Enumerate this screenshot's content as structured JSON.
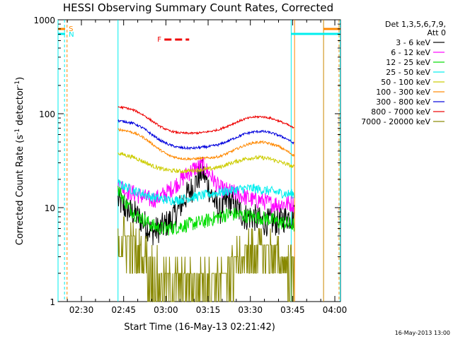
{
  "chart_data": {
    "type": "line",
    "title": "HESSI Observing Summary Count Rates, Corrected",
    "xlabel": "Start Time (16-May-13 02:21:42)",
    "ylabel_main": "Corrected Count Rate (s",
    "ylabel_sup1": "-1",
    "ylabel_mid": " detector",
    "ylabel_sup2": "-1",
    "ylabel_end": ")",
    "yscale": "log",
    "ylim": [
      1,
      1000
    ],
    "xlim_minutes": [
      141.7,
      242
    ],
    "x_ticks": [
      {
        "label": "02:30",
        "minutes": 150
      },
      {
        "label": "02:45",
        "minutes": 165
      },
      {
        "label": "03:00",
        "minutes": 180
      },
      {
        "label": "03:15",
        "minutes": 195
      },
      {
        "label": "03:30",
        "minutes": 210
      },
      {
        "label": "03:45",
        "minutes": 225
      },
      {
        "label": "04:00",
        "minutes": 240
      }
    ],
    "y_ticks": [
      {
        "label": "1",
        "value": 1
      },
      {
        "label": "10",
        "value": 10
      },
      {
        "label": "100",
        "value": 100
      },
      {
        "label": "1000",
        "value": 1000
      }
    ],
    "legend_header": [
      "Det 1,3,5,6,7,9,",
      "Att 0"
    ],
    "legend_position": "right",
    "series": [
      {
        "name": "3 - 6 keV",
        "color": "#000000",
        "x": [
          163,
          166,
          169,
          172,
          175,
          178,
          181,
          184,
          187,
          190,
          193,
          196,
          199,
          202,
          205,
          208,
          211,
          214,
          217,
          220,
          223,
          225.5
        ],
        "y": [
          12,
          9.5,
          8.5,
          7,
          5.5,
          6,
          7,
          9,
          13,
          17,
          25,
          14,
          9,
          12,
          10,
          8,
          8,
          7,
          7,
          7,
          8,
          8
        ]
      },
      {
        "name": "6 - 12 keV",
        "color": "#ff00ff",
        "x": [
          163,
          166,
          169,
          172,
          175,
          178,
          181,
          184,
          187,
          190,
          193,
          196,
          199,
          202,
          205,
          208,
          211,
          214,
          217,
          220,
          223,
          225.5
        ],
        "y": [
          18,
          15,
          14,
          13,
          12,
          13,
          15,
          18,
          22,
          26,
          28,
          22,
          16,
          15,
          14,
          13,
          12,
          12,
          11,
          11,
          11,
          11
        ]
      },
      {
        "name": "12 - 25 keV",
        "color": "#00dd00",
        "x": [
          163,
          166,
          169,
          172,
          175,
          178,
          181,
          184,
          187,
          190,
          193,
          196,
          199,
          202,
          205,
          208,
          211,
          214,
          217,
          220,
          223,
          225.5
        ],
        "y": [
          16,
          11,
          8.5,
          7.5,
          6.5,
          6,
          6,
          6.2,
          6.5,
          6.8,
          7,
          7.5,
          8,
          8.5,
          8.5,
          8.2,
          8,
          7.8,
          7.5,
          7,
          6.8,
          6.5
        ]
      },
      {
        "name": "25 - 50 keV",
        "color": "#00eeee",
        "x": [
          163,
          166,
          169,
          172,
          175,
          178,
          181,
          184,
          187,
          190,
          193,
          196,
          199,
          202,
          205,
          208,
          211,
          214,
          217,
          220,
          223,
          225.5
        ],
        "y": [
          18,
          16.5,
          15,
          14,
          13,
          12.5,
          12,
          12,
          12.5,
          13,
          13.5,
          14,
          14.5,
          15,
          15.5,
          16,
          16,
          15.5,
          15,
          14.5,
          14,
          14
        ]
      },
      {
        "name": "50 - 100 keV",
        "color": "#cccc00",
        "x": [
          163,
          166,
          169,
          172,
          175,
          178,
          181,
          184,
          187,
          190,
          193,
          196,
          199,
          202,
          205,
          208,
          211,
          214,
          217,
          220,
          223,
          225.5
        ],
        "y": [
          38,
          36,
          34,
          31,
          28,
          26,
          25,
          24.5,
          24.5,
          25,
          25.5,
          26,
          27,
          29,
          31,
          33,
          34,
          34,
          33,
          31,
          29,
          27
        ]
      },
      {
        "name": "100 - 300 keV",
        "color": "#ff8800",
        "x": [
          163,
          166,
          169,
          172,
          175,
          178,
          181,
          184,
          187,
          190,
          193,
          196,
          199,
          202,
          205,
          208,
          211,
          214,
          217,
          220,
          223,
          225.5
        ],
        "y": [
          68,
          66,
          62,
          56,
          48,
          41,
          36,
          34,
          33,
          33,
          33.5,
          34,
          35,
          38,
          42,
          46,
          49,
          50,
          48,
          45,
          40,
          36
        ]
      },
      {
        "name": "300 - 800 keV",
        "color": "#0000dd",
        "x": [
          163,
          166,
          169,
          172,
          175,
          178,
          181,
          184,
          187,
          190,
          193,
          196,
          199,
          202,
          205,
          208,
          211,
          214,
          217,
          220,
          223,
          225.5
        ],
        "y": [
          84,
          82,
          78,
          70,
          60,
          52,
          47,
          44,
          43,
          43,
          44,
          45,
          47,
          51,
          56,
          61,
          64,
          65,
          63,
          59,
          54,
          48
        ]
      },
      {
        "name": "800 - 7000 keV",
        "color": "#ee0000",
        "x": [
          163,
          166,
          169,
          172,
          175,
          178,
          181,
          184,
          187,
          190,
          193,
          196,
          199,
          202,
          205,
          208,
          211,
          214,
          217,
          220,
          223,
          225.5
        ],
        "y": [
          118,
          115,
          108,
          97,
          84,
          73,
          66,
          63,
          62,
          62,
          63,
          65,
          68,
          74,
          81,
          88,
          92,
          93,
          90,
          84,
          77,
          70
        ]
      },
      {
        "name": "7000 - 20000 keV",
        "color": "#888800",
        "x": [
          163,
          166,
          169,
          172,
          175,
          178,
          181,
          184,
          187,
          190,
          193,
          196,
          199,
          202,
          205,
          208,
          211,
          214,
          217,
          220,
          223,
          225.5
        ],
        "y": [
          5.5,
          5,
          4.5,
          3.2,
          2.8,
          2.2,
          2,
          2,
          2,
          2,
          2,
          2,
          2,
          2.5,
          3,
          3.5,
          4,
          4,
          3.8,
          3.5,
          3,
          2.5
        ]
      }
    ],
    "top_markers": [
      {
        "label": "S",
        "color": "#ff8800",
        "minutes": 144.5
      },
      {
        "label": "N",
        "color": "#00eeee",
        "minutes": 144.5
      },
      {
        "label": "F",
        "color": "#ee0000",
        "minutes": 184
      }
    ],
    "footer_date": "16-May-2013 13:00"
  }
}
